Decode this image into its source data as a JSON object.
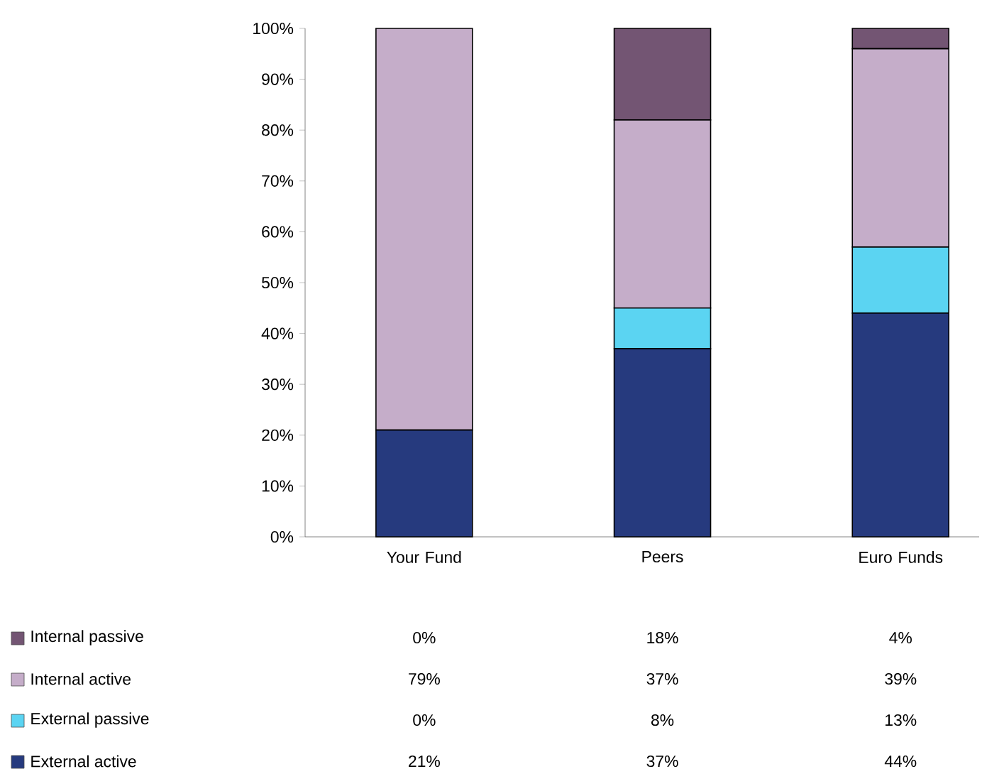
{
  "chart_data": {
    "type": "bar",
    "stacked": true,
    "categories": [
      "Your Fund",
      "Peers",
      "Euro Funds"
    ],
    "series": [
      {
        "name": "External active",
        "color": "#263a7e",
        "values": [
          21,
          37,
          44
        ],
        "value_labels": [
          "21%",
          "37%",
          "44%"
        ]
      },
      {
        "name": "External passive",
        "color": "#5bd4f2",
        "values": [
          0,
          8,
          13
        ],
        "value_labels": [
          "0%",
          "8%",
          "13%"
        ]
      },
      {
        "name": "Internal active",
        "color": "#c5adc9",
        "values": [
          79,
          37,
          39
        ],
        "value_labels": [
          "79%",
          "37%",
          "39%"
        ]
      },
      {
        "name": "Internal passive",
        "color": "#735573",
        "values": [
          0,
          18,
          4
        ],
        "value_labels": [
          "0%",
          "18%",
          "4%"
        ]
      }
    ],
    "ylim": [
      0,
      100
    ],
    "yticks": [
      {
        "value": 0,
        "label": "0%"
      },
      {
        "value": 10,
        "label": "10%"
      },
      {
        "value": 20,
        "label": "20%"
      },
      {
        "value": 30,
        "label": "30%"
      },
      {
        "value": 40,
        "label": "40%"
      },
      {
        "value": 50,
        "label": "50%"
      },
      {
        "value": 60,
        "label": "60%"
      },
      {
        "value": 70,
        "label": "70%"
      },
      {
        "value": 80,
        "label": "80%"
      },
      {
        "value": 90,
        "label": "90%"
      },
      {
        "value": 100,
        "label": "100%"
      }
    ],
    "legend": "bottom",
    "grid": false
  }
}
